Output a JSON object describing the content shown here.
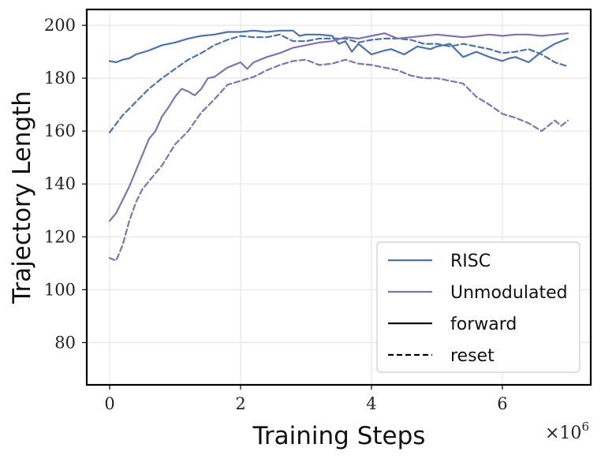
{
  "chart_data": {
    "type": "line",
    "title": "",
    "xlabel": "Training Steps",
    "ylabel": "Trajectory Length",
    "x_multiplier_label": "×10",
    "x_multiplier_exp": "6",
    "xlim": [
      -0.35,
      7.35
    ],
    "ylim": [
      64,
      206
    ],
    "x_ticks": [
      0,
      2,
      4,
      6
    ],
    "x_tick_labels": [
      "0",
      "2",
      "4",
      "6"
    ],
    "y_ticks": [
      80,
      100,
      120,
      140,
      160,
      180,
      200
    ],
    "y_tick_labels": [
      "80",
      "100",
      "120",
      "140",
      "160",
      "180",
      "200"
    ],
    "grid": true,
    "legend_position": "lower-right",
    "legend": [
      {
        "label": "RISC",
        "color": "#4c72b0",
        "style": "solid"
      },
      {
        "label": "Unmodulated",
        "color": "#8172b3",
        "style": "solid"
      },
      {
        "label": "forward",
        "color": "#000000",
        "style": "solid"
      },
      {
        "label": "reset",
        "color": "#000000",
        "style": "dashed"
      }
    ],
    "series": [
      {
        "name": "RISC forward",
        "color": "#4c72b0",
        "dash": "solid",
        "x": [
          0,
          0.1,
          0.2,
          0.3,
          0.4,
          0.6,
          0.8,
          1.0,
          1.2,
          1.4,
          1.6,
          1.8,
          2.0,
          2.2,
          2.4,
          2.6,
          2.8,
          2.9,
          3.0,
          3.2,
          3.4,
          3.5,
          3.6,
          3.7,
          3.8,
          4.0,
          4.2,
          4.3,
          4.5,
          4.7,
          4.9,
          5.0,
          5.2,
          5.4,
          5.5,
          5.6,
          5.8,
          6.0,
          6.1,
          6.2,
          6.4,
          6.6,
          6.8,
          7.0
        ],
        "y": [
          186.5,
          186,
          187,
          187.5,
          189,
          190.5,
          192.5,
          193.5,
          195,
          196,
          196.5,
          197.5,
          197.5,
          198,
          197.5,
          198,
          198,
          196,
          196.5,
          196.5,
          196,
          193,
          194,
          190,
          193,
          189,
          190.5,
          191,
          189,
          192,
          191,
          192,
          193,
          188,
          189,
          190,
          188,
          186.5,
          187.5,
          188,
          186,
          190,
          193,
          195
        ]
      },
      {
        "name": "RISC reset",
        "color": "#4c72b0",
        "dash": "dashed",
        "x": [
          0,
          0.2,
          0.4,
          0.6,
          0.8,
          1.0,
          1.2,
          1.4,
          1.6,
          1.8,
          2.0,
          2.2,
          2.4,
          2.6,
          2.8,
          3.0,
          3.2,
          3.4,
          3.6,
          3.8,
          4.0,
          4.2,
          4.4,
          4.6,
          4.8,
          5.0,
          5.2,
          5.4,
          5.6,
          5.8,
          6.0,
          6.2,
          6.4,
          6.6,
          6.8,
          7.0
        ],
        "y": [
          159.5,
          166,
          171,
          176,
          180,
          183.5,
          187,
          189.5,
          192.5,
          194.5,
          196,
          195.5,
          195.5,
          196.5,
          194,
          194,
          195,
          195,
          195,
          193.5,
          194.5,
          195,
          195,
          194.5,
          193,
          193,
          192,
          193,
          192,
          191,
          189.5,
          190,
          191,
          189,
          186,
          184.5
        ]
      },
      {
        "name": "Unmodulated forward",
        "color": "#8172b3",
        "dash": "solid",
        "x": [
          0,
          0.1,
          0.2,
          0.3,
          0.4,
          0.5,
          0.6,
          0.7,
          0.8,
          0.9,
          1.0,
          1.1,
          1.2,
          1.3,
          1.4,
          1.5,
          1.6,
          1.8,
          2.0,
          2.1,
          2.2,
          2.4,
          2.6,
          2.8,
          3.0,
          3.2,
          3.4,
          3.6,
          3.8,
          4.0,
          4.2,
          4.4,
          4.6,
          4.8,
          5.0,
          5.2,
          5.4,
          5.6,
          5.8,
          6.0,
          6.2,
          6.4,
          6.6,
          6.8,
          7.0
        ],
        "y": [
          126,
          129,
          134,
          139,
          145,
          151,
          157,
          160,
          165.5,
          169,
          173,
          176,
          175,
          173.5,
          176,
          180,
          180.5,
          184,
          186,
          183.5,
          186,
          188,
          189.5,
          191.5,
          192.5,
          193.5,
          194,
          195.5,
          195,
          196,
          197,
          195,
          195.5,
          196,
          196.5,
          196,
          195.5,
          196,
          196.5,
          196,
          196.5,
          196.5,
          196,
          196.5,
          197
        ]
      },
      {
        "name": "Unmodulated reset",
        "color": "#8172b3",
        "dash": "dashed",
        "x": [
          0,
          0.1,
          0.2,
          0.3,
          0.4,
          0.5,
          0.6,
          0.7,
          0.8,
          0.9,
          1.0,
          1.2,
          1.4,
          1.6,
          1.8,
          2.0,
          2.2,
          2.4,
          2.6,
          2.8,
          3.0,
          3.2,
          3.4,
          3.6,
          3.8,
          4.0,
          4.2,
          4.4,
          4.6,
          4.8,
          5.0,
          5.2,
          5.4,
          5.6,
          5.8,
          6.0,
          6.2,
          6.4,
          6.6,
          6.8,
          6.9,
          7.0
        ],
        "y": [
          112,
          111,
          117,
          126,
          133,
          138,
          141,
          144,
          147,
          151,
          155,
          160,
          167,
          172,
          177.5,
          179,
          180.5,
          183,
          185,
          186.5,
          187,
          185,
          185.5,
          187,
          185.5,
          185,
          184,
          183,
          181,
          180,
          180,
          179,
          178,
          173,
          170,
          166.5,
          165,
          163,
          160,
          164,
          162,
          164
        ]
      }
    ]
  }
}
